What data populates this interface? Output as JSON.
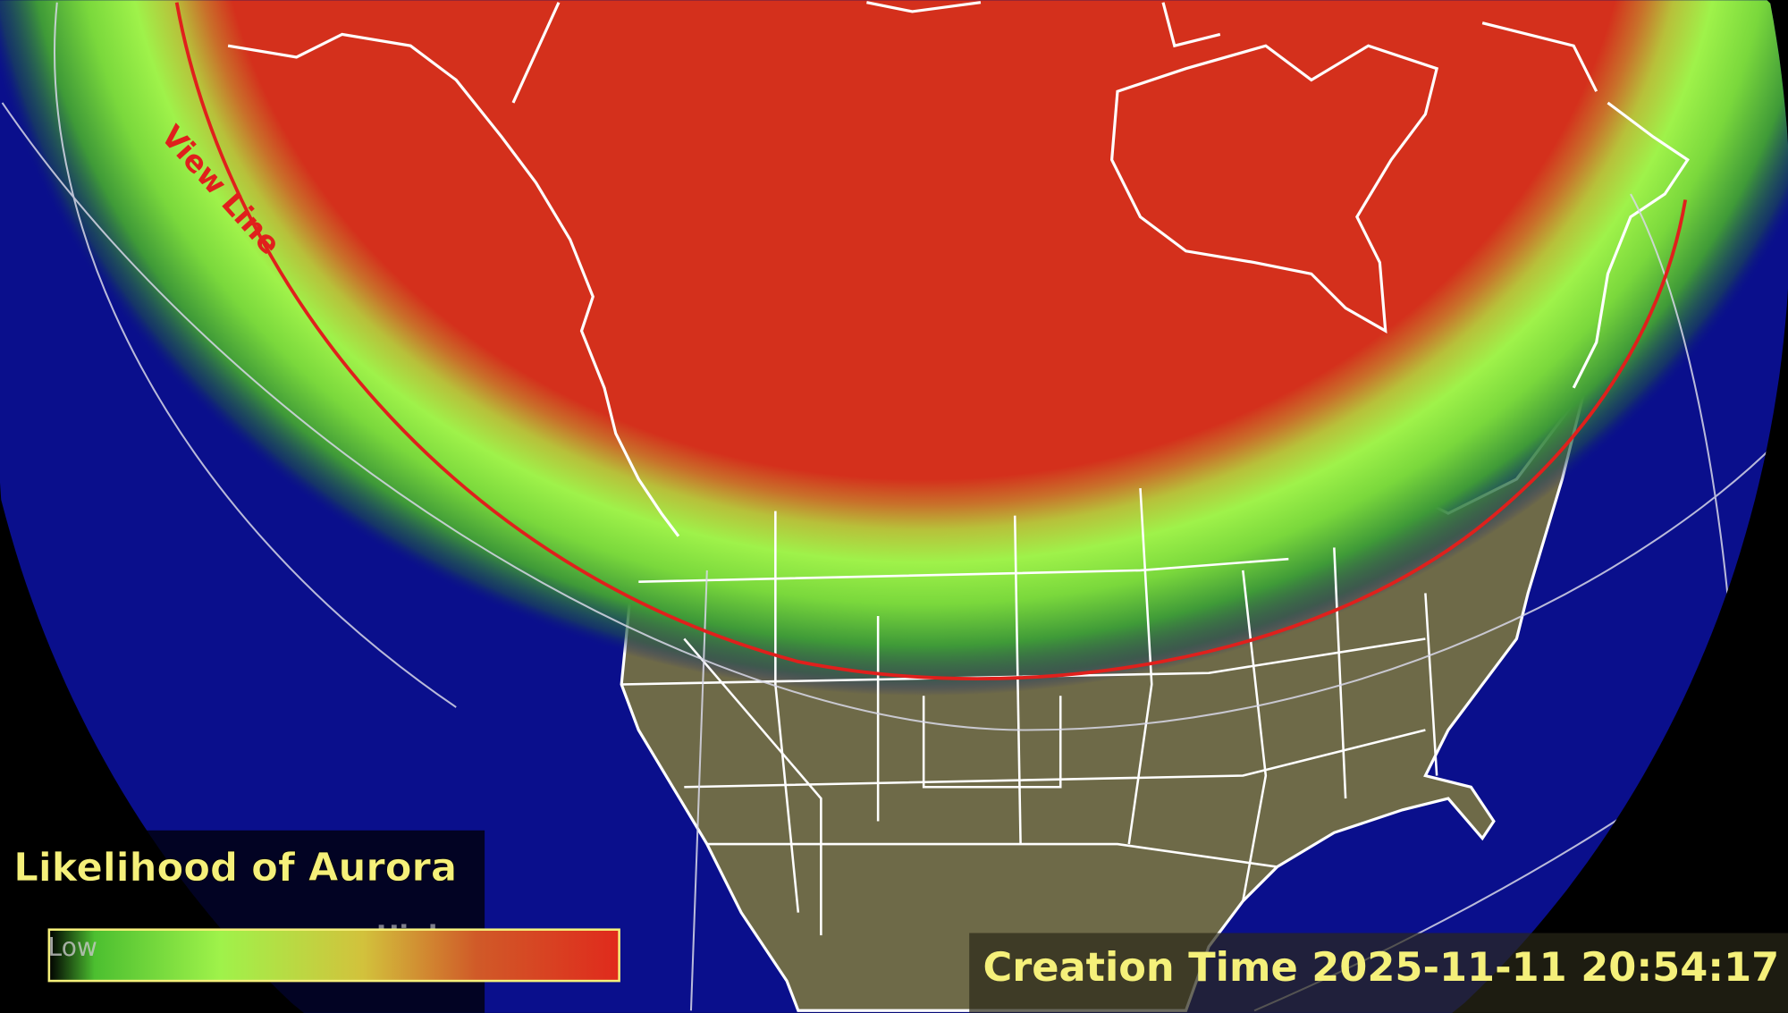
{
  "map": {
    "view_line_label": "View Line",
    "colors": {
      "background": "#000000",
      "ocean": "#0a0f8c",
      "land": "#6e6a48",
      "aurora_high": "#d4301c",
      "aurora_mid": "#9ff24a",
      "view_line": "#e0201c",
      "borders": "#ffffff"
    }
  },
  "legend": {
    "title": "Likelihood of Aurora",
    "low_label": "Low",
    "high_label": "High",
    "text_color": "#f5f07a"
  },
  "footer": {
    "creation_time_label": "Creation Time 2025-11-11 20:54:17"
  }
}
